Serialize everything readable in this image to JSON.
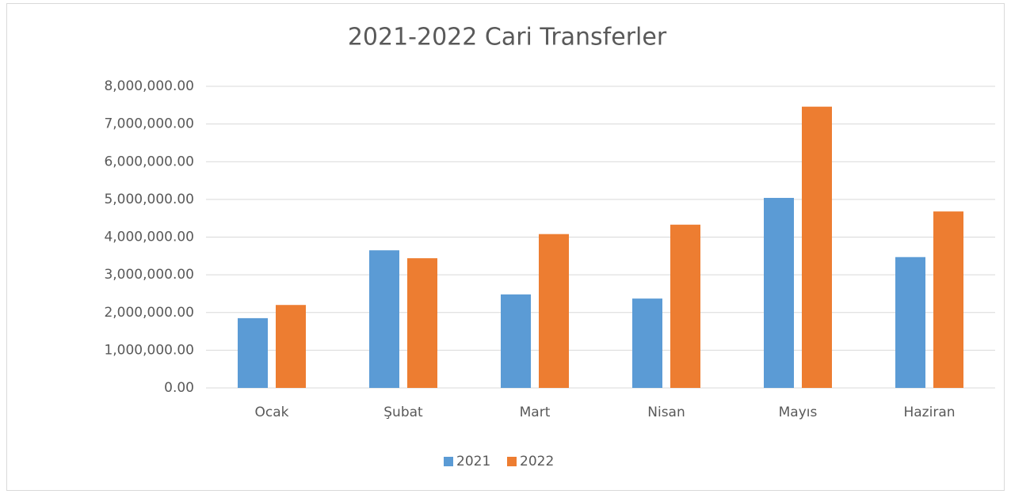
{
  "chart_data": {
    "type": "bar",
    "title": "2021-2022 Cari Transferler",
    "categories": [
      "Ocak",
      "Şubat",
      "Mart",
      "Nisan",
      "Mayıs",
      "Haziran"
    ],
    "series": [
      {
        "name": "2021",
        "color": "#5b9bd5",
        "values": [
          1850000,
          3650000,
          2480000,
          2370000,
          5040000,
          3470000
        ]
      },
      {
        "name": "2022",
        "color": "#ed7d31",
        "values": [
          2200000,
          3440000,
          4080000,
          4330000,
          7460000,
          4680000
        ]
      }
    ],
    "ylim": [
      0,
      8000000
    ],
    "yticks": [
      {
        "value": 0,
        "label": "0.00"
      },
      {
        "value": 1000000,
        "label": "1,000,000.00"
      },
      {
        "value": 2000000,
        "label": "2,000,000.00"
      },
      {
        "value": 3000000,
        "label": "3,000,000.00"
      },
      {
        "value": 4000000,
        "label": "4,000,000.00"
      },
      {
        "value": 5000000,
        "label": "5,000,000.00"
      },
      {
        "value": 6000000,
        "label": "6,000,000.00"
      },
      {
        "value": 7000000,
        "label": "7,000,000.00"
      },
      {
        "value": 8000000,
        "label": "8,000,000.00"
      }
    ],
    "grid": true,
    "legend": "bottom"
  }
}
